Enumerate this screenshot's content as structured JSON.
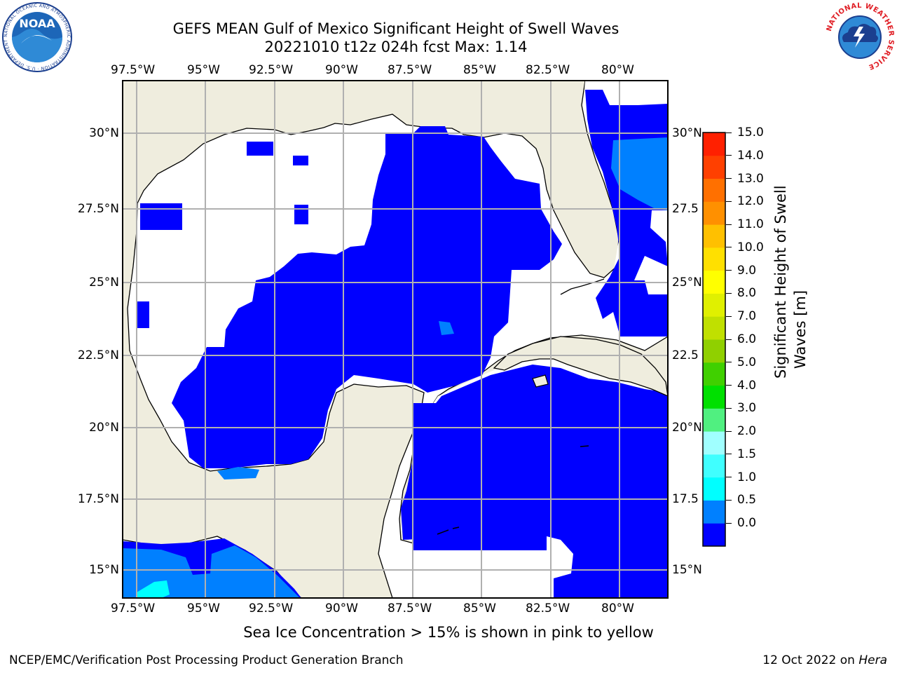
{
  "header": {
    "title_line1": "GEFS MEAN Gulf of Mexico Significant Height of Swell Waves",
    "title_line2": "20221010 t12z 024h fcst   Max: 1.14"
  },
  "logos": {
    "noaa_text": "NOAA",
    "noaa_ring_text": "NATIONAL OCEANIC AND ATMOSPHERIC ADMINISTRATION · U.S. DEPARTMENT OF COMMERCE",
    "nws_ring_text": "NATIONAL WEATHER SERVICE"
  },
  "map": {
    "lon_ticks": [
      "97.5°W",
      "95°W",
      "92.5°W",
      "90°W",
      "87.5°W",
      "85°W",
      "82.5°W",
      "80°W"
    ],
    "lat_ticks": [
      "30°N",
      "27.5°N",
      "25°N",
      "22.5°N",
      "20°N",
      "17.5°N",
      "15°N"
    ],
    "lat_ticks_right": [
      "30°N",
      "27.5",
      "25°N",
      "22.5",
      "20°N",
      "17.5",
      "15°N"
    ],
    "land_color": "#efedde",
    "no_data_color": "#ffffff",
    "swell_0_05_color": "#0000ff",
    "swell_05_10_color": "#0080ff",
    "swell_10_15_color": "#00ffff"
  },
  "colorbar": {
    "label_line1": "Significant Height of Swell",
    "label_line2": "Waves [m]",
    "ticks": [
      "15.0",
      "14.0",
      "13.0",
      "12.0",
      "11.0",
      "10.0",
      "9.0",
      "8.0",
      "7.0",
      "6.0",
      "5.0",
      "4.0",
      "3.0",
      "2.0",
      "1.5",
      "1.0",
      "0.5",
      "0.0"
    ],
    "colors": [
      "#0000ff",
      "#0080ff",
      "#00ffff",
      "#40ffff",
      "#a0ffff",
      "#50f080",
      "#00e000",
      "#40d000",
      "#90d000",
      "#c0e000",
      "#e0f000",
      "#ffff00",
      "#ffe000",
      "#ffc000",
      "#ff9000",
      "#ff7000",
      "#ff4000",
      "#ff2000",
      "#ff0000"
    ]
  },
  "caption": "Sea Ice Concentration > 15% is shown in pink to yellow",
  "footer": {
    "left": "NCEP/EMC/Verification Post Processing Product Generation Branch",
    "right_date": "12 Oct 2022 on ",
    "right_host": "Hera"
  }
}
